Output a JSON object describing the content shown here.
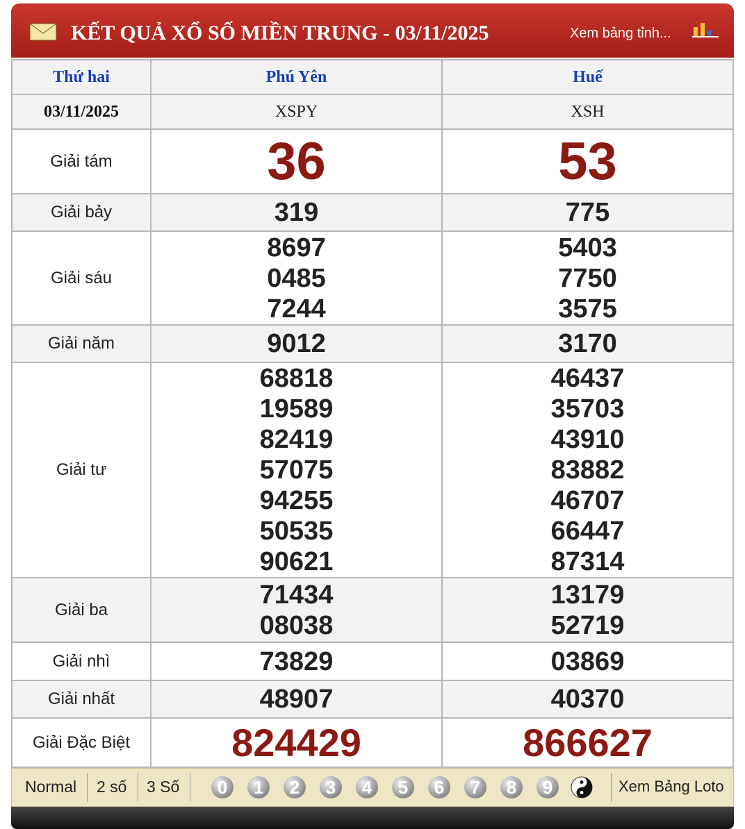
{
  "header": {
    "title": "KẾT QUẢ XỔ SỐ MIỀN TRUNG - 03/11/2025",
    "link": "Xem bảng tỉnh..."
  },
  "table": {
    "header": [
      "Thứ hai",
      "Phú Yên",
      "Huế"
    ],
    "codes": [
      "03/11/2025",
      "XSPY",
      "XSH"
    ],
    "rows": [
      {
        "label": "Giải tám",
        "values": [
          [
            "36"
          ],
          [
            "53"
          ]
        ]
      },
      {
        "label": "Giải bảy",
        "values": [
          [
            "319"
          ],
          [
            "775"
          ]
        ]
      },
      {
        "label": "Giải sáu",
        "values": [
          [
            "8697",
            "0485",
            "7244"
          ],
          [
            "5403",
            "7750",
            "3575"
          ]
        ]
      },
      {
        "label": "Giải năm",
        "values": [
          [
            "9012"
          ],
          [
            "3170"
          ]
        ]
      },
      {
        "label": "Giải tư",
        "values": [
          [
            "68818",
            "19589",
            "82419",
            "57075",
            "94255",
            "50535",
            "90621"
          ],
          [
            "46437",
            "35703",
            "43910",
            "83882",
            "46707",
            "66447",
            "87314"
          ]
        ]
      },
      {
        "label": "Giải ba",
        "values": [
          [
            "71434",
            "08038"
          ],
          [
            "13179",
            "52719"
          ]
        ]
      },
      {
        "label": "Giải nhì",
        "values": [
          [
            "73829"
          ],
          [
            "03869"
          ]
        ]
      },
      {
        "label": "Giải nhất",
        "values": [
          [
            "48907"
          ],
          [
            "40370"
          ]
        ]
      },
      {
        "label": "Giải Đặc Biệt",
        "values": [
          [
            "824429"
          ],
          [
            "866627"
          ]
        ]
      }
    ]
  },
  "footer": {
    "modes": [
      "Normal",
      "2 số",
      "3 Số"
    ],
    "digits": [
      "0",
      "1",
      "2",
      "3",
      "4",
      "5",
      "6",
      "7",
      "8",
      "9"
    ],
    "link": "Xem Bảng Loto"
  }
}
